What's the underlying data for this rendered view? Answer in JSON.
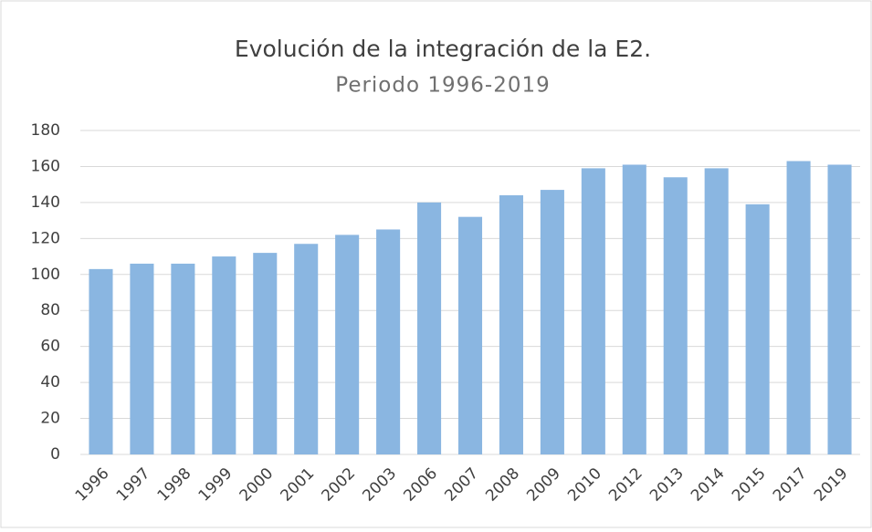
{
  "chart_data": {
    "type": "bar",
    "title": "Evolución de la integración de la E2.",
    "subtitle": "Periodo 1996-2019",
    "categories": [
      "1996",
      "1997",
      "1998",
      "1999",
      "2000",
      "2001",
      "2002",
      "2003",
      "2006",
      "2007",
      "2008",
      "2009",
      "2010",
      "2012",
      "2013",
      "2014",
      "2015",
      "2017",
      "2019"
    ],
    "values": [
      103,
      106,
      106,
      110,
      112,
      117,
      122,
      125,
      140,
      132,
      144,
      147,
      159,
      161,
      154,
      159,
      139,
      163,
      161
    ],
    "color": "#8ab6e1",
    "ylim": [
      0,
      180
    ],
    "yticks": [
      0,
      20,
      40,
      60,
      80,
      100,
      120,
      140,
      160,
      180
    ],
    "grid": true
  }
}
